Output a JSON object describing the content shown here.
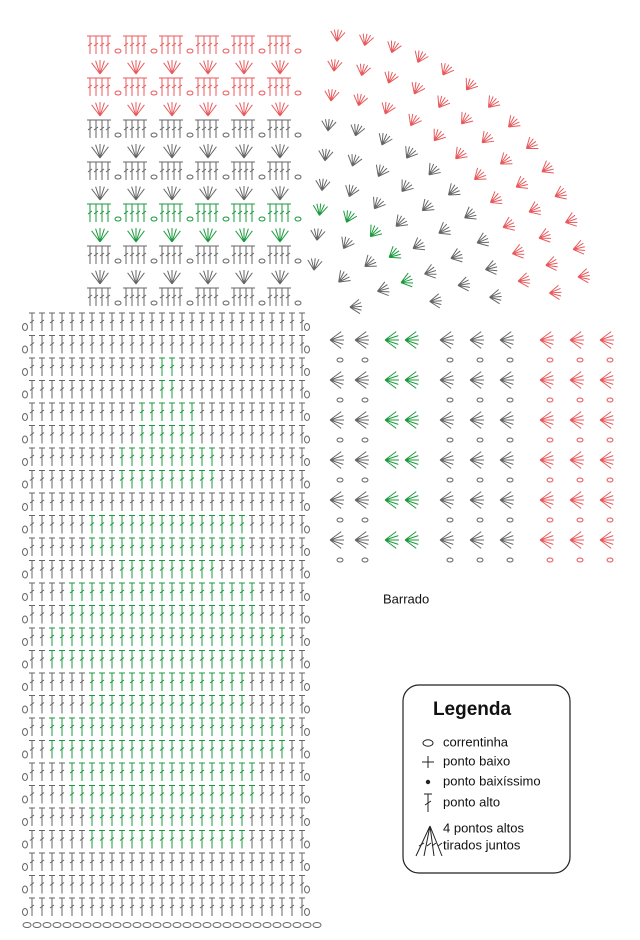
{
  "caption": "Barrado",
  "legend": {
    "title": "Legenda",
    "items": [
      "correntinha",
      "ponto baixo",
      "ponto baixíssimo",
      "ponto alto"
    ],
    "cluster": [
      "4 pontos altos",
      "tirados juntos"
    ]
  }
}
